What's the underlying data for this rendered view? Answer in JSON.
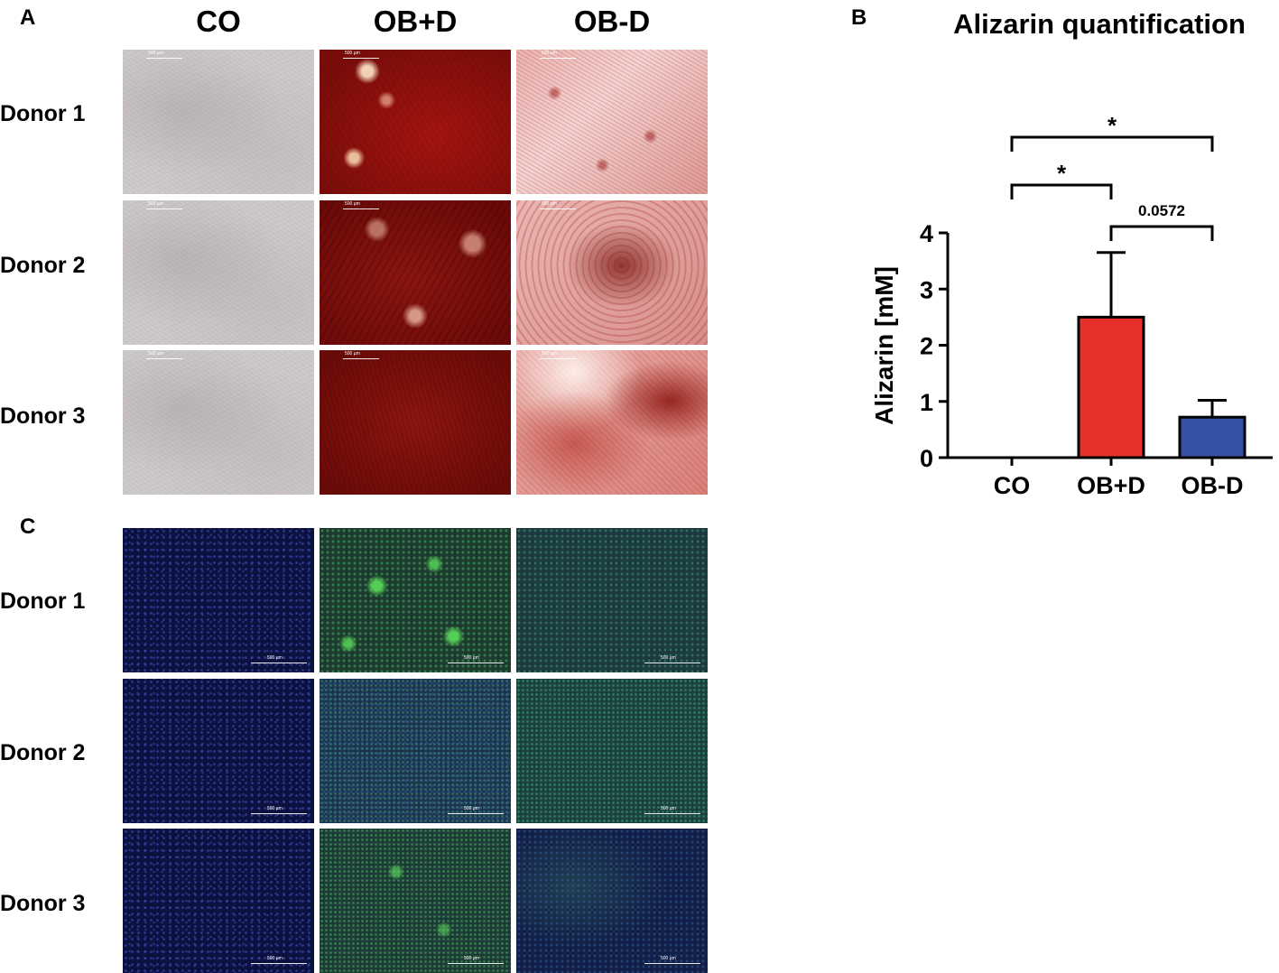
{
  "panels": {
    "a": {
      "letter": "A",
      "columns": [
        "CO",
        "OB+D",
        "OB-D"
      ],
      "rows": [
        "Donor 1",
        "Donor 2",
        "Donor 3"
      ],
      "scalebar": "500 µm"
    },
    "b": {
      "letter": "B"
    },
    "c": {
      "letter": "C",
      "rows": [
        "Donor 1",
        "Donor 2",
        "Donor 3"
      ],
      "scalebar": "500 µm"
    }
  },
  "chart_data": {
    "type": "bar",
    "title": "Alizarin quantification",
    "ylabel": "Alizarin [mM]",
    "xlabel": "",
    "categories": [
      "CO",
      "OB+D",
      "OB-D"
    ],
    "values": [
      0,
      2.5,
      0.72
    ],
    "errors": [
      0,
      1.15,
      0.3
    ],
    "colors": [
      "#ffffff",
      "#e8302a",
      "#3553a4"
    ],
    "ylim": [
      0,
      4
    ],
    "yticks": [
      "0",
      "1",
      "2",
      "3",
      "4"
    ],
    "significance": [
      {
        "from": "CO",
        "to": "OB-D",
        "label": "*"
      },
      {
        "from": "CO",
        "to": "OB+D",
        "label": "*"
      },
      {
        "from": "OB+D",
        "to": "OB-D",
        "label": "0.0572"
      }
    ]
  }
}
